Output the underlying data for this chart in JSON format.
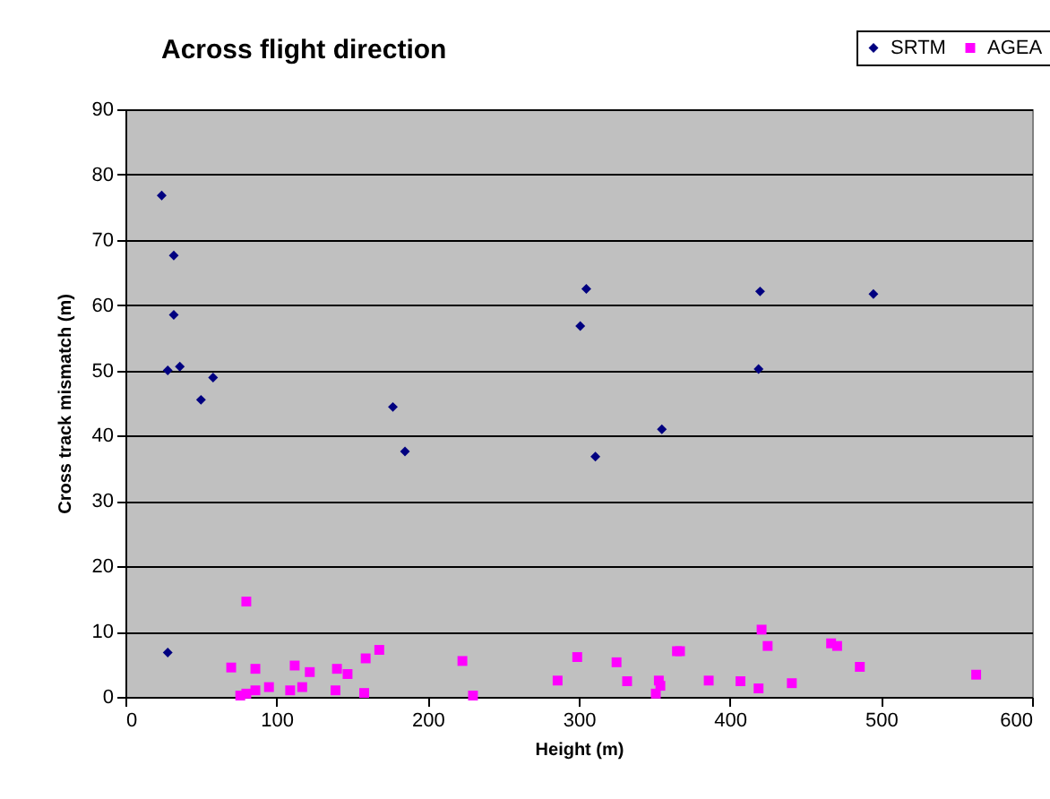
{
  "chart_data": {
    "type": "scatter",
    "title": "Across flight direction",
    "xlabel": "Height (m)",
    "ylabel": "Cross track mismatch (m)",
    "xlim": [
      0,
      600
    ],
    "xticks": [
      0,
      100,
      200,
      300,
      400,
      500,
      600
    ],
    "ylim": [
      0,
      90
    ],
    "yticks": [
      0,
      10,
      20,
      30,
      40,
      50,
      60,
      70,
      80,
      90
    ],
    "grid": "y",
    "legend": "top right",
    "series": [
      {
        "name": "SRTM",
        "color": "#000080",
        "marker": "diamond",
        "x": [
          24,
          32,
          32,
          28,
          36,
          50,
          58,
          177,
          185,
          301,
          305,
          311,
          355,
          420,
          419,
          495,
          28
        ],
        "values": [
          76.8,
          67.6,
          58.5,
          50.0,
          50.6,
          45.5,
          48.9,
          44.4,
          37.6,
          56.8,
          62.5,
          36.8,
          41.0,
          62.1,
          50.2,
          61.7,
          6.8
        ]
      },
      {
        "name": "AGEA",
        "color": "#ff00ff",
        "marker": "square",
        "x": [
          70,
          80,
          76,
          80,
          86,
          86,
          95,
          109,
          112,
          117,
          122,
          139,
          140,
          147,
          158,
          159,
          168,
          223,
          230,
          286,
          299,
          325,
          332,
          353,
          354,
          351,
          365,
          367,
          386,
          407,
          419,
          421,
          425,
          441,
          467,
          471,
          486,
          563
        ],
        "values": [
          4.5,
          14.6,
          0.2,
          0.5,
          4.3,
          1.0,
          1.5,
          1.0,
          4.8,
          1.5,
          3.8,
          1.0,
          4.3,
          3.5,
          0.6,
          5.9,
          7.2,
          5.5,
          0.2,
          2.5,
          6.1,
          5.3,
          2.4,
          2.5,
          1.7,
          0.5,
          7.0,
          7.0,
          2.5,
          2.4,
          1.3,
          10.3,
          7.8,
          2.1,
          8.2,
          7.8,
          4.6,
          3.4
        ]
      }
    ]
  }
}
